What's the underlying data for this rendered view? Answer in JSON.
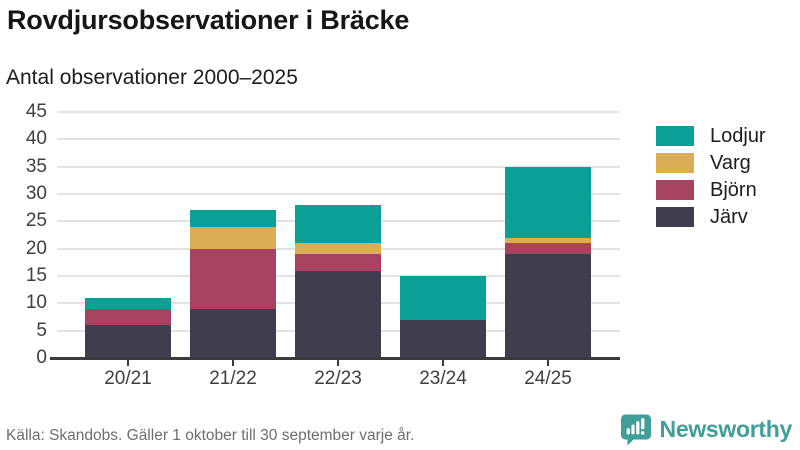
{
  "header": {
    "title": "Rovdjursobservationer i Bräcke",
    "subtitle": "Antal observationer 2000–2025"
  },
  "legend": [
    {
      "label": "Lodjur",
      "color": "#0aa096"
    },
    {
      "label": "Varg",
      "color": "#dbad56"
    },
    {
      "label": "Björn",
      "color": "#a74260"
    },
    {
      "label": "Järv",
      "color": "#3f3d4e"
    }
  ],
  "chart_data": {
    "type": "bar",
    "stacked": true,
    "title": "Rovdjursobservationer i Bräcke",
    "subtitle": "Antal observationer 2000–2025",
    "categories": [
      "20/21",
      "21/22",
      "22/23",
      "23/24",
      "24/25"
    ],
    "series": [
      {
        "name": "Järv",
        "color": "#3f3d4e",
        "values": [
          6,
          9,
          16,
          7,
          19
        ]
      },
      {
        "name": "Björn",
        "color": "#a74260",
        "values": [
          3,
          11,
          3,
          0,
          2
        ]
      },
      {
        "name": "Varg",
        "color": "#dbad56",
        "values": [
          0,
          4,
          2,
          0,
          1
        ]
      },
      {
        "name": "Lodjur",
        "color": "#0aa096",
        "values": [
          2,
          3,
          7,
          8,
          13
        ]
      }
    ],
    "totals": [
      11,
      27,
      28,
      15,
      35
    ],
    "ylim": [
      0,
      45
    ],
    "yticks": [
      0,
      5,
      10,
      15,
      20,
      25,
      30,
      35,
      40,
      45
    ],
    "grid": true,
    "legend_position": "right"
  },
  "footer": {
    "source": "Källa: Skandobs. Gäller 1 oktober till 30 september varje år.",
    "brand": "Newsworthy"
  },
  "colors": {
    "grid": "#e3e3e3",
    "axis": "#3a3a3a",
    "brand_teal": "#3f9e97"
  }
}
